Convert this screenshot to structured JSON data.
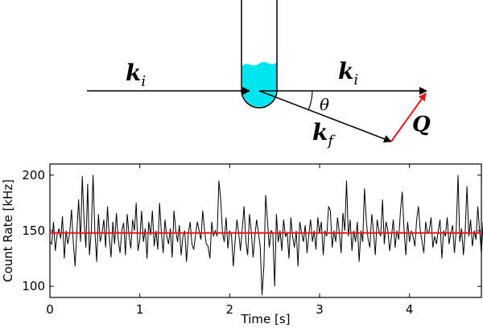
{
  "diagram": {
    "labels": {
      "ki_incoming": "k",
      "ki_incoming_sub": "i",
      "ki_outgoing": "k",
      "ki_outgoing_sub": "i",
      "kf": "k",
      "kf_sub": "f",
      "theta": "θ",
      "q": "Q"
    },
    "colors": {
      "liquid": "#00e5ee",
      "scattering_vector": "#e8151b",
      "beam": "#000000"
    }
  },
  "chart_data": {
    "type": "line",
    "xlabel": "Time [s]",
    "ylabel": "Count Rate [kHz]",
    "xlim": [
      0,
      4.8
    ],
    "ylim": [
      90,
      210
    ],
    "x_ticks": [
      "0",
      "1",
      "2",
      "3",
      "4"
    ],
    "x_tick_values": [
      0,
      1,
      2,
      3,
      4
    ],
    "y_ticks": [
      "100",
      "150",
      "200"
    ],
    "y_tick_values": [
      100,
      150,
      200
    ],
    "grid": false,
    "series": [
      {
        "values_start": 0,
        "values_step": 0.02,
        "values": [
          140,
          138,
          158,
          132,
          146,
          152,
          143,
          163,
          125,
          150,
          138,
          148,
          169,
          140,
          118,
          150,
          178,
          140,
          199,
          160,
          135,
          192,
          128,
          150,
          200,
          150,
          122,
          165,
          140,
          148,
          160,
          135,
          172,
          145,
          126,
          158,
          138,
          166,
          142,
          130,
          150,
          157,
          128,
          165,
          146,
          134,
          160,
          150,
          175,
          132,
          142,
          168,
          140,
          152,
          125,
          158,
          146,
          168,
          136,
          150,
          133,
          175,
          148,
          130,
          160,
          145,
          138,
          152,
          126,
          168,
          150,
          140,
          155,
          128,
          145,
          150,
          122,
          148,
          158,
          138,
          133,
          146,
          158,
          150,
          142,
          168,
          150,
          138,
          136,
          125,
          158,
          145,
          150,
          145,
          195,
          178,
          148,
          140,
          162,
          134,
          150,
          146,
          118,
          140,
          160,
          148,
          132,
          152,
          172,
          140,
          128,
          165,
          150,
          126,
          145,
          160,
          148,
          135,
          92,
          118,
          182,
          160,
          135,
          150,
          148,
          100,
          165,
          140,
          150,
          132,
          160,
          145,
          148,
          125,
          162,
          145,
          135,
          150,
          118,
          158,
          148,
          140,
          155,
          130,
          146,
          160,
          140,
          150,
          133,
          162,
          148,
          158,
          128,
          150,
          145,
          172,
          168,
          135,
          150,
          140,
          162,
          148,
          130,
          166,
          150,
          195,
          145,
          160,
          132,
          150,
          140,
          158,
          122,
          150,
          140,
          188,
          158,
          142,
          135,
          165,
          150,
          128,
          160,
          150,
          145,
          178,
          138,
          158,
          150,
          132,
          145,
          160,
          135,
          150,
          142,
          168,
          185,
          150,
          128,
          158,
          140,
          150,
          145,
          136,
          160,
          172,
          150,
          140,
          130,
          158,
          148,
          150,
          162,
          135,
          145,
          138,
          150,
          160,
          125,
          150,
          145,
          162,
          138,
          148,
          155,
          130,
          150,
          200,
          140,
          152,
          128,
          150,
          190,
          145,
          160,
          136,
          150,
          142,
          172,
          150,
          130,
          158,
          145,
          140,
          165,
          150,
          128,
          155,
          150,
          138,
          162,
          150,
          140,
          145,
          158,
          150,
          148,
          160,
          132,
          150
        ]
      },
      {
        "value": 148
      }
    ]
  }
}
